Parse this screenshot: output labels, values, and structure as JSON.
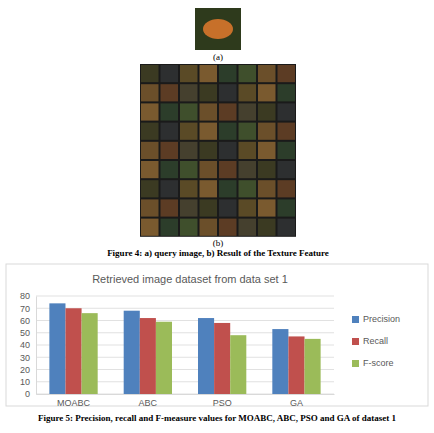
{
  "figure4": {
    "label_a": "(a)",
    "label_b": "(b)",
    "caption": "Figure 4: a) query image, b) Result of the Texture Feature"
  },
  "figure5": {
    "caption": "Figure 5: Precision, recall and F-measure values for MOABC, ABC, PSO and GA of dataset 1"
  },
  "chart_data": {
    "type": "bar",
    "title": "Retrieved image dataset from data set 1",
    "categories": [
      "MOABC",
      "ABC",
      "PSO",
      "GA"
    ],
    "series": [
      {
        "name": "Precision",
        "color": "#4f81bd",
        "values": [
          74,
          68,
          62,
          53
        ]
      },
      {
        "name": "Recall",
        "color": "#c0504d",
        "values": [
          70,
          62,
          58,
          47
        ]
      },
      {
        "name": "F-score",
        "color": "#9bbb59",
        "values": [
          66,
          59,
          48,
          45
        ]
      }
    ],
    "ylim": [
      0,
      80
    ],
    "yticks": [
      0,
      10,
      20,
      30,
      40,
      50,
      60,
      70,
      80
    ],
    "grid": true,
    "legend": "right"
  }
}
